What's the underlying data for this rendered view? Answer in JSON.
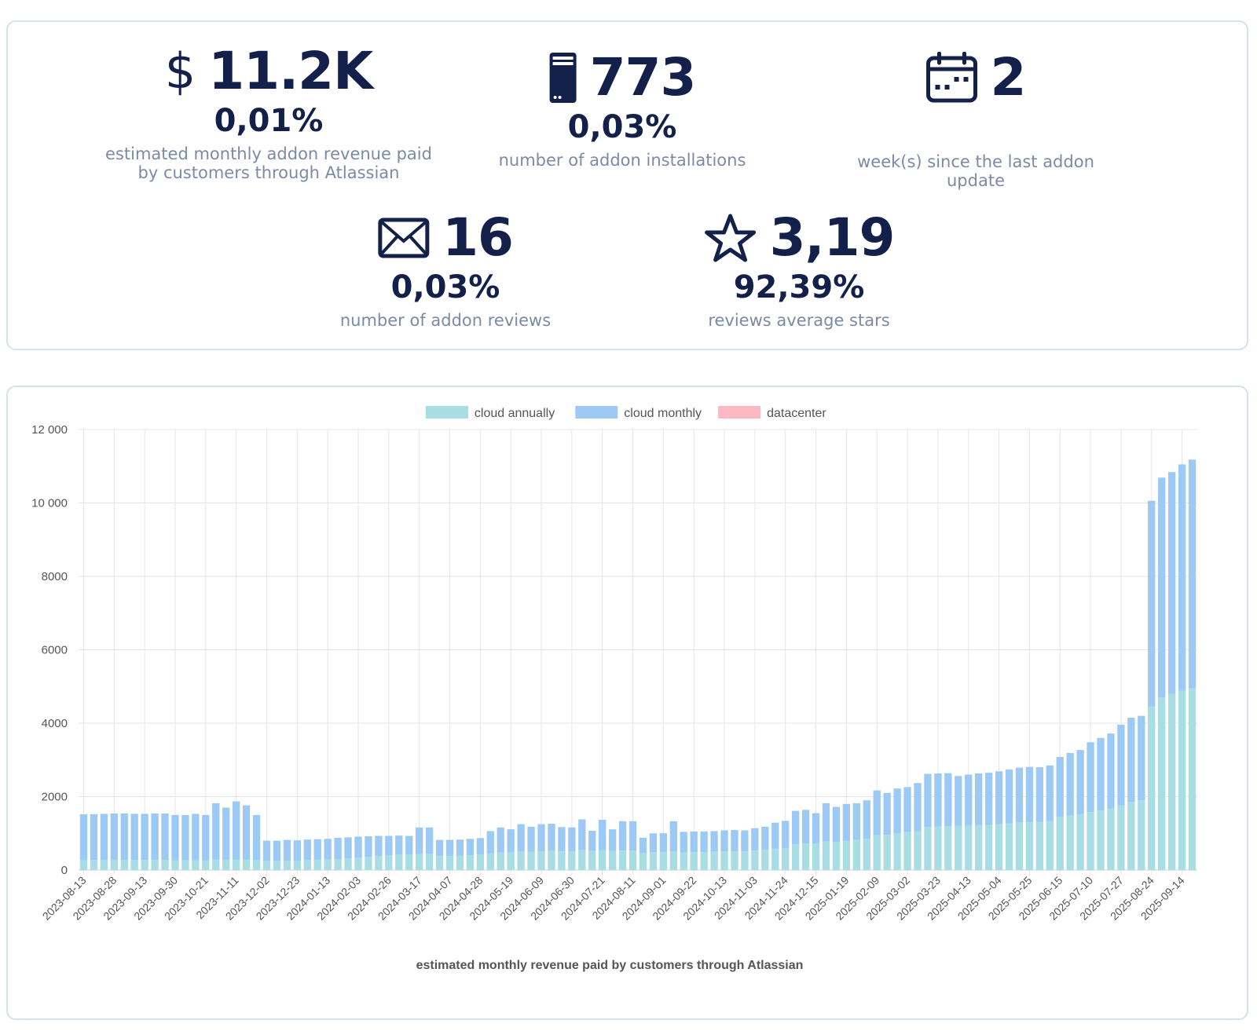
{
  "stats": {
    "revenue": {
      "currency_symbol": "$",
      "value": "11.2K",
      "change": "0,01%",
      "label": "estimated monthly addon revenue paid by customers through Atlassian"
    },
    "installations": {
      "icon": "server-icon",
      "value": "773",
      "change": "0,03%",
      "label": "number of addon installations"
    },
    "last_update": {
      "icon": "calendar-icon",
      "value": "2",
      "label": "week(s) since the last addon update"
    },
    "reviews": {
      "icon": "envelope-icon",
      "value": "16",
      "change": "0,03%",
      "label": "number of addon reviews"
    },
    "stars": {
      "icon": "star-icon",
      "value": "3,19",
      "change": "92,39%",
      "label": "reviews average stars"
    }
  },
  "chart_data": {
    "type": "bar",
    "stacked": true,
    "xlabel": "estimated monthly revenue paid by customers through Atlassian",
    "ylabel": "",
    "ylim": [
      0,
      12000
    ],
    "yticks": [
      0,
      2000,
      4000,
      6000,
      8000,
      10000,
      12000
    ],
    "ytick_labels": [
      "0",
      "2000",
      "4000",
      "6000",
      "8000",
      "10 000",
      "12 000"
    ],
    "grid": true,
    "legend_position": "top-center",
    "xtick_labels": [
      "2023-08-13",
      "2023-08-28",
      "2023-09-13",
      "2023-09-30",
      "2023-10-21",
      "2023-11-11",
      "2023-12-02",
      "2023-12-23",
      "2024-01-13",
      "2024-02-03",
      "2024-02-26",
      "2024-03-17",
      "2024-04-07",
      "2024-04-28",
      "2024-05-19",
      "2024-06-09",
      "2024-06-30",
      "2024-07-21",
      "2024-08-11",
      "2024-09-01",
      "2024-09-22",
      "2024-10-13",
      "2024-11-03",
      "2024-11-24",
      "2024-12-15",
      "2025-01-19",
      "2025-02-09",
      "2025-03-02",
      "2025-03-23",
      "2025-04-13",
      "2025-05-04",
      "2025-05-25",
      "2025-06-15",
      "2025-07-10",
      "2025-07-27",
      "2025-08-24",
      "2025-09-14"
    ],
    "totals": [
      1520,
      1520,
      1530,
      1540,
      1540,
      1530,
      1530,
      1540,
      1540,
      1500,
      1500,
      1530,
      1500,
      1820,
      1700,
      1870,
      1760,
      1500,
      800,
      800,
      820,
      810,
      830,
      840,
      850,
      880,
      890,
      910,
      920,
      930,
      930,
      940,
      930,
      1160,
      1160,
      820,
      820,
      830,
      850,
      870,
      1060,
      1160,
      1110,
      1250,
      1180,
      1250,
      1260,
      1170,
      1160,
      1380,
      1070,
      1370,
      1110,
      1330,
      1330,
      880,
      1000,
      1000,
      1330,
      1040,
      1050,
      1050,
      1060,
      1080,
      1090,
      1080,
      1140,
      1180,
      1290,
      1340,
      1610,
      1640,
      1550,
      1820,
      1720,
      1800,
      1820,
      1900,
      2170,
      2100,
      2220,
      2260,
      2370,
      2620,
      2630,
      2640,
      2560,
      2600,
      2630,
      2650,
      2690,
      2740,
      2790,
      2810,
      2800,
      2850,
      3080,
      3190,
      3270,
      3480,
      3600,
      3720,
      3960,
      4150,
      4200,
      10060,
      10690,
      10840,
      11050,
      11180
    ],
    "series": [
      {
        "name": "cloud annually",
        "color": "#a8dde3",
        "values": [
          270,
          270,
          270,
          270,
          270,
          270,
          270,
          270,
          270,
          260,
          260,
          260,
          260,
          280,
          280,
          280,
          280,
          270,
          250,
          250,
          250,
          250,
          270,
          280,
          290,
          300,
          320,
          340,
          360,
          380,
          400,
          420,
          420,
          440,
          440,
          380,
          380,
          390,
          400,
          420,
          460,
          480,
          490,
          500,
          500,
          510,
          520,
          510,
          510,
          540,
          520,
          530,
          520,
          530,
          530,
          470,
          490,
          490,
          500,
          480,
          490,
          490,
          500,
          510,
          510,
          510,
          530,
          550,
          580,
          600,
          700,
          720,
          720,
          780,
          770,
          800,
          820,
          850,
          950,
          960,
          1000,
          1030,
          1060,
          1170,
          1180,
          1190,
          1200,
          1210,
          1220,
          1230,
          1250,
          1270,
          1290,
          1300,
          1310,
          1330,
          1450,
          1480,
          1520,
          1580,
          1620,
          1670,
          1760,
          1860,
          1900,
          4450,
          4700,
          4800,
          4880,
          4950
        ]
      },
      {
        "name": "cloud monthly",
        "color": "#9ccaf5",
        "values": [
          1250,
          1250,
          1260,
          1270,
          1270,
          1260,
          1260,
          1270,
          1270,
          1240,
          1240,
          1270,
          1240,
          1540,
          1420,
          1590,
          1480,
          1230,
          550,
          550,
          570,
          560,
          560,
          560,
          560,
          580,
          570,
          570,
          560,
          550,
          530,
          520,
          510,
          720,
          720,
          440,
          440,
          440,
          450,
          450,
          600,
          680,
          620,
          750,
          680,
          740,
          740,
          660,
          650,
          840,
          550,
          840,
          590,
          800,
          800,
          410,
          510,
          510,
          830,
          560,
          560,
          560,
          560,
          570,
          580,
          570,
          610,
          630,
          710,
          740,
          910,
          920,
          830,
          1040,
          950,
          1000,
          1000,
          1050,
          1220,
          1140,
          1220,
          1230,
          1310,
          1450,
          1450,
          1450,
          1360,
          1390,
          1410,
          1420,
          1440,
          1470,
          1500,
          1510,
          1490,
          1520,
          1630,
          1710,
          1750,
          1900,
          1980,
          2050,
          2200,
          2290,
          2300,
          5610,
          5990,
          6040,
          6170,
          6230
        ]
      },
      {
        "name": "datacenter",
        "color": "#fdb8c1",
        "values": [
          0,
          0,
          0,
          0,
          0,
          0,
          0,
          0,
          0,
          0,
          0,
          0,
          0,
          0,
          0,
          0,
          0,
          0,
          0,
          0,
          0,
          0,
          0,
          0,
          0,
          0,
          0,
          0,
          0,
          0,
          0,
          0,
          0,
          0,
          0,
          0,
          0,
          0,
          0,
          0,
          0,
          0,
          0,
          0,
          0,
          0,
          0,
          0,
          0,
          0,
          0,
          0,
          0,
          0,
          0,
          0,
          0,
          0,
          0,
          0,
          0,
          0,
          0,
          0,
          0,
          0,
          0,
          0,
          0,
          0,
          0,
          0,
          0,
          0,
          0,
          0,
          0,
          0,
          0,
          0,
          0,
          0,
          0,
          0,
          0,
          0,
          0,
          0,
          0,
          0,
          0,
          0,
          0,
          0,
          0,
          0,
          0,
          0,
          0,
          0,
          0,
          0,
          0,
          0,
          0,
          0,
          0,
          0,
          0,
          0
        ]
      }
    ]
  }
}
